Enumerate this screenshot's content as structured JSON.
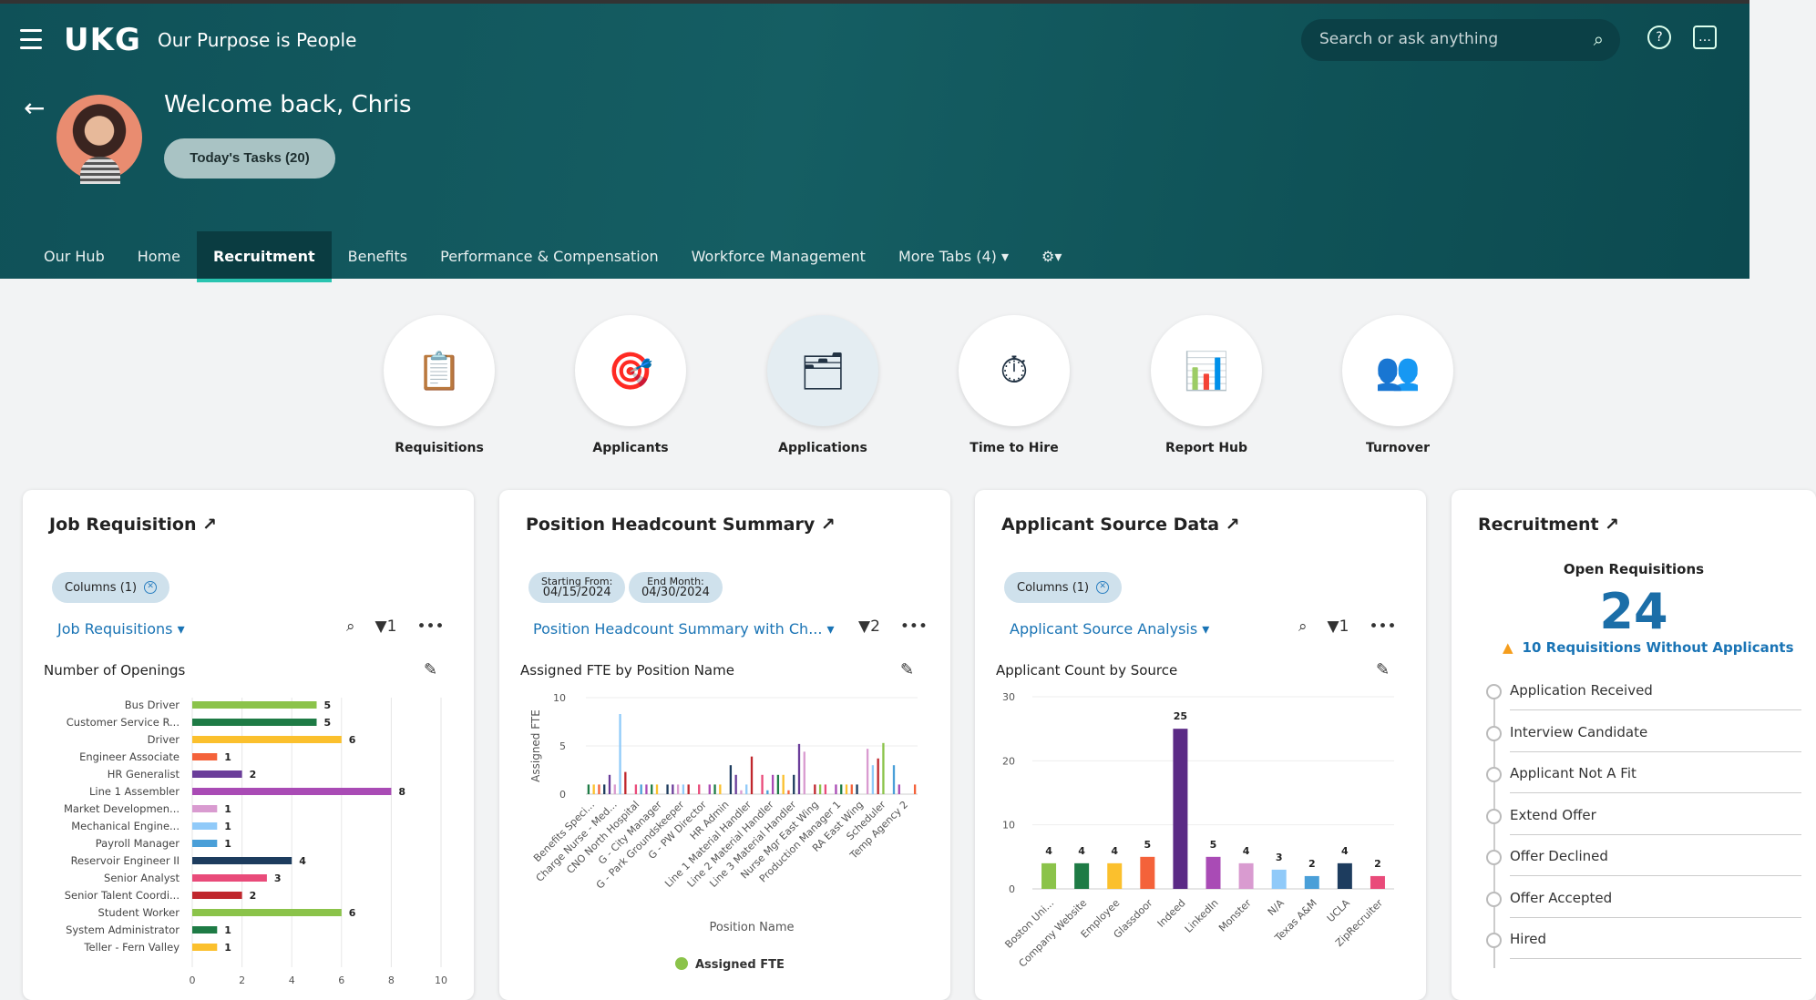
{
  "header": {
    "logo": "UKG",
    "tagline": "Our Purpose is People",
    "search_placeholder": "Search or ask anything",
    "welcome": "Welcome back, Chris",
    "tasks_button": "Today's Tasks (20)"
  },
  "tabs": [
    {
      "label": "Our Hub"
    },
    {
      "label": "Home"
    },
    {
      "label": "Recruitment",
      "active": true
    },
    {
      "label": "Benefits"
    },
    {
      "label": "Performance & Compensation"
    },
    {
      "label": "Workforce Management"
    },
    {
      "label": "More Tabs  (4) ▾"
    },
    {
      "label": "⚙▾"
    }
  ],
  "tiles": [
    {
      "label": "Requisitions",
      "icon": "clipboard-icon",
      "glyph": "📋"
    },
    {
      "label": "Applicants",
      "icon": "target-person-icon",
      "glyph": "🎯"
    },
    {
      "label": "Applications",
      "icon": "application-icon",
      "glyph": "🗂"
    },
    {
      "label": "Time to Hire",
      "icon": "clock-icon",
      "glyph": "⏱"
    },
    {
      "label": "Report Hub",
      "icon": "bar-chart-icon",
      "glyph": "📊"
    },
    {
      "label": "Turnover",
      "icon": "people-cycle-icon",
      "glyph": "👥"
    }
  ],
  "cards": {
    "job": {
      "title": "Job Requisition ↗",
      "chip": "Columns (1)",
      "dropdown": "Job Requisitions ▾",
      "filter": "1",
      "chart_title": "Number of Openings"
    },
    "head": {
      "title": "Position Headcount Summary ↗",
      "chip1_label": "Starting From:",
      "chip1_value": "04/15/2024",
      "chip2_label": "End Month:",
      "chip2_value": "04/30/2024",
      "dropdown": "Position Headcount Summary with Ch... ▾",
      "filter": "2",
      "chart_title": "Assigned FTE by Position Name"
    },
    "source": {
      "title": "Applicant Source Data ↗",
      "chip": "Columns (1)",
      "dropdown": "Applicant Source Analysis ▾",
      "filter": "1",
      "chart_title": "Applicant Count by Source"
    },
    "recruit": {
      "title": "Recruitment ↗",
      "kpi_label": "Open Requisitions",
      "kpi_value": "24",
      "warning": "10 Requisitions Without Applicants",
      "steps": [
        "Application Received",
        "Interview Candidate",
        "Applicant Not A Fit",
        "Extend Offer",
        "Offer Declined",
        "Offer Accepted",
        "Hired"
      ]
    }
  },
  "chart_data": [
    {
      "type": "bar",
      "orientation": "horizontal",
      "title": "Number of Openings",
      "xlim": [
        0,
        10
      ],
      "xticks": [
        0,
        2,
        4,
        6,
        8,
        10
      ],
      "categories": [
        "Bus Driver",
        "Customer Service R...",
        "Driver",
        "Engineer Associate",
        "HR Generalist",
        "Line 1 Assembler",
        "Market Developmen...",
        "Mechanical Engine...",
        "Payroll Manager",
        "Reservoir Engineer II",
        "Senior Analyst",
        "Senior Talent Coordi...",
        "Student Worker",
        "System Administrator",
        "Teller - Fern Valley"
      ],
      "values": [
        5,
        5,
        6,
        1,
        2,
        8,
        1,
        1,
        1,
        4,
        3,
        2,
        6,
        1,
        1
      ],
      "colors": [
        "#8bc34a",
        "#1e7b45",
        "#fbc02d",
        "#f4623a",
        "#6a3d9a",
        "#a94bb5",
        "#d99bd0",
        "#90caf9",
        "#4a9fd8",
        "#1d3c5e",
        "#e94b7a",
        "#c0272d",
        "#8bc34a",
        "#1e7b45",
        "#fbc02d"
      ]
    },
    {
      "type": "bar",
      "title": "Assigned FTE by Position Name",
      "xlabel": "Position Name",
      "ylabel": "Assigned FTE",
      "ylim": [
        0,
        10
      ],
      "yticks": [
        0,
        5,
        10
      ],
      "legend": "Assigned FTE",
      "legend_color": "#8bc34a",
      "tick_labels": [
        "Benefits Speci...",
        "Charge Nurse - Med...",
        "CNO North Hospital",
        "G - City Manager",
        "G - Park Groundskeeper",
        "G - PW Director",
        "HR Admin",
        "Line 1 Material Handler",
        "Line 2 Material Handler",
        "Line 3 Material Handler",
        "Nurse Mgr East Wing",
        "Production Manager 1",
        "RA East Wing",
        "Scheduler",
        "Temp Agency 2"
      ],
      "values": [
        1,
        1,
        1,
        1,
        2,
        1,
        8.3,
        2.3,
        0,
        1,
        1,
        1,
        1,
        1,
        0,
        1,
        1,
        1,
        1,
        1,
        0,
        1,
        0,
        1,
        1,
        1,
        0,
        3,
        2,
        0.4,
        1,
        3.9,
        0,
        2,
        0.4,
        2,
        2,
        2,
        0.4,
        2,
        5.2,
        4.4,
        0,
        1,
        1,
        1,
        0,
        1,
        1,
        1,
        1,
        1,
        0,
        4.7,
        3,
        3.7,
        5.3,
        0,
        3,
        1,
        0,
        0,
        1
      ]
    },
    {
      "type": "bar",
      "title": "Applicant Count by Source",
      "ylim": [
        0,
        30
      ],
      "yticks": [
        0,
        10,
        20,
        30
      ],
      "categories": [
        "Boston Uni...",
        "Company Website",
        "Employee",
        "Glassdoor",
        "Indeed",
        "LinkedIn",
        "Monster",
        "N/A",
        "Texas A&M",
        "UCLA",
        "ZipRecruiter"
      ],
      "values": [
        4,
        4,
        4,
        5,
        25,
        5,
        4,
        3,
        2,
        4,
        2
      ],
      "colors": [
        "#8bc34a",
        "#1e7b45",
        "#fbc02d",
        "#f4623a",
        "#5b2a86",
        "#a94bb5",
        "#d99bd0",
        "#90caf9",
        "#4a9fd8",
        "#1d3c5e",
        "#e94b7a"
      ]
    }
  ]
}
